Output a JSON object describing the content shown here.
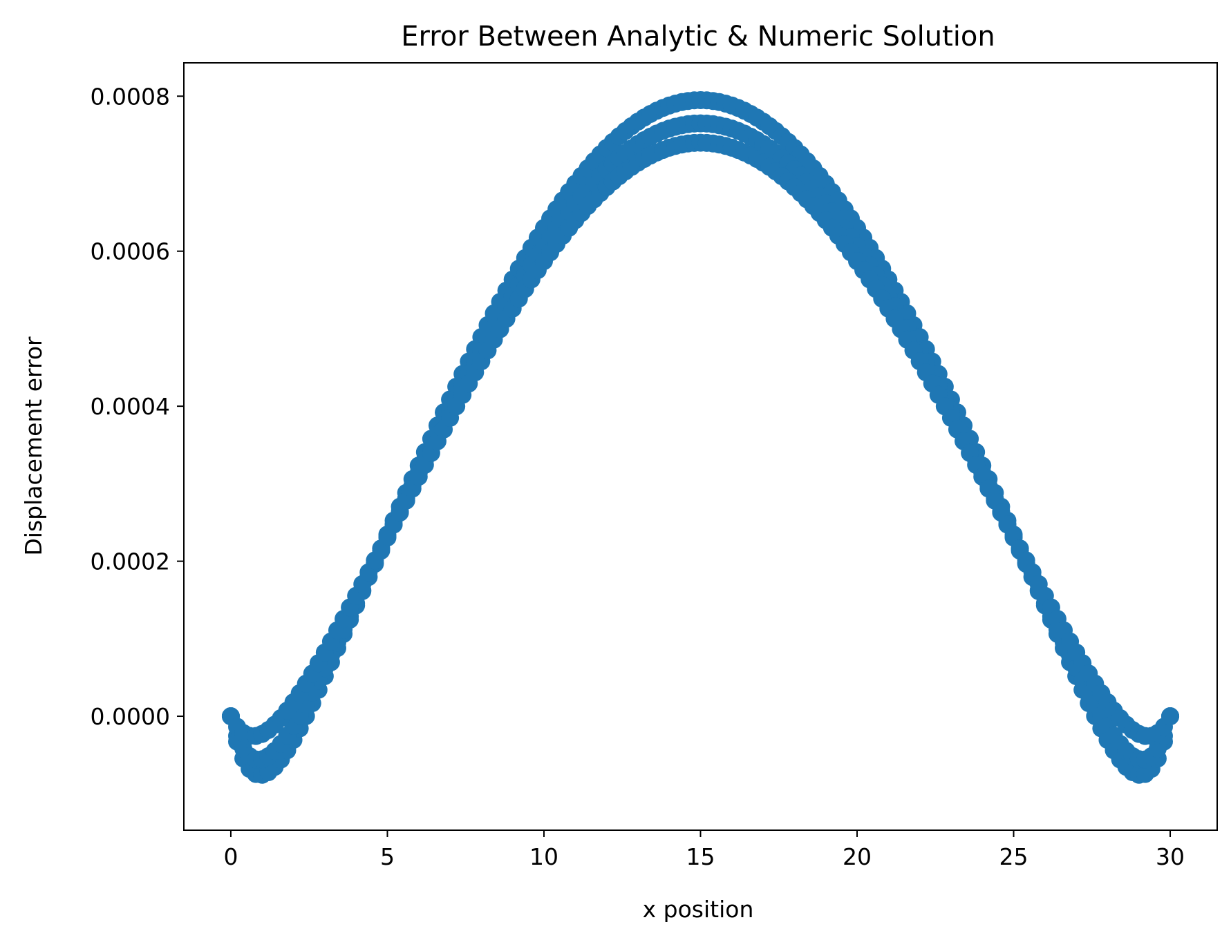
{
  "chart_data": {
    "type": "scatter",
    "title": "Error Between Analytic & Numeric Solution",
    "xlabel": "x position",
    "ylabel": "Displacement error",
    "xlim": [
      -1.5,
      31.5
    ],
    "ylim": [
      -0.000147,
      0.000843
    ],
    "xticks": [
      0,
      5,
      10,
      15,
      20,
      25,
      30
    ],
    "xtick_labels": [
      "0",
      "5",
      "10",
      "15",
      "20",
      "25",
      "30"
    ],
    "yticks": [
      0.0,
      0.0002,
      0.0004,
      0.0006,
      0.0008
    ],
    "ytick_labels": [
      "0.0000",
      "0.0002",
      "0.0004",
      "0.0006",
      "0.0008"
    ],
    "grid": false,
    "color": "#1f77b4",
    "x_range": [
      0,
      30
    ],
    "points_per_series": 151,
    "series": [
      {
        "peak_x": 15,
        "peak_error": 0.000795,
        "min_near_ends": -0.000102,
        "end_value_at_x0_and_x30": 0.0
      },
      {
        "peak_x": 15,
        "peak_error": 0.000765,
        "min_near_ends": -8e-05,
        "end_value_at_x0_and_x30": 0.0
      },
      {
        "peak_x": 15,
        "peak_error": 0.00074,
        "min_near_ends": -4.5e-05,
        "end_value_at_x0_and_x30": 0.0
      }
    ]
  }
}
